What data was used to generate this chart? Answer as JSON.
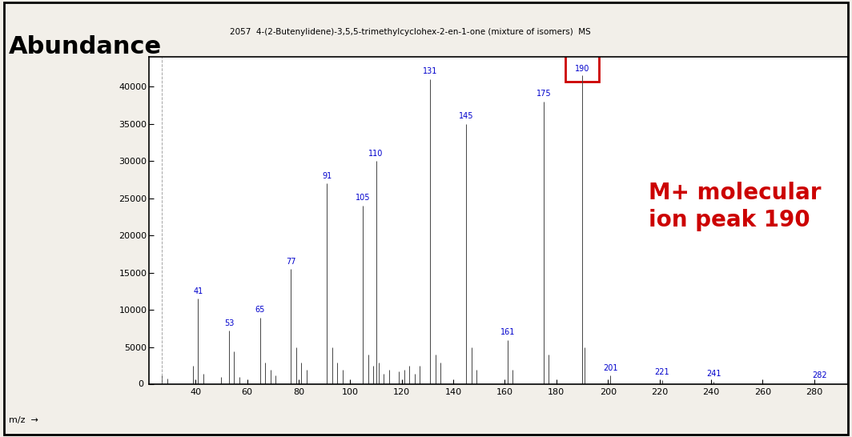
{
  "title": "2057  4-(2-Butenylidene)-3,5,5-trimethylcyclohex-2-en-1-one (mixture of isomers)  MS",
  "mz_label": "m/z  →",
  "ylabel_large": "Abundance",
  "background_color": "#f2efe9",
  "plot_bg": "#ffffff",
  "xlim": [
    22,
    293
  ],
  "ylim": [
    0,
    44000
  ],
  "yticks": [
    0,
    5000,
    10000,
    15000,
    20000,
    25000,
    30000,
    35000,
    40000
  ],
  "xticks": [
    40,
    60,
    80,
    100,
    120,
    140,
    160,
    180,
    200,
    220,
    240,
    260,
    280
  ],
  "annotation_text": "M+ molecular\nion peak 190",
  "annotation_color": "#cc0000",
  "peaks": [
    {
      "mz": 27,
      "intensity": 1200,
      "label": null
    },
    {
      "mz": 29,
      "intensity": 800,
      "label": null
    },
    {
      "mz": 39,
      "intensity": 2500,
      "label": null
    },
    {
      "mz": 41,
      "intensity": 11500,
      "label": "41"
    },
    {
      "mz": 43,
      "intensity": 1500,
      "label": null
    },
    {
      "mz": 50,
      "intensity": 1000,
      "label": null
    },
    {
      "mz": 53,
      "intensity": 7200,
      "label": "53"
    },
    {
      "mz": 55,
      "intensity": 4500,
      "label": null
    },
    {
      "mz": 57,
      "intensity": 1000,
      "label": null
    },
    {
      "mz": 65,
      "intensity": 9000,
      "label": "65"
    },
    {
      "mz": 67,
      "intensity": 3000,
      "label": null
    },
    {
      "mz": 69,
      "intensity": 2000,
      "label": null
    },
    {
      "mz": 71,
      "intensity": 1200,
      "label": null
    },
    {
      "mz": 77,
      "intensity": 15500,
      "label": "77"
    },
    {
      "mz": 79,
      "intensity": 5000,
      "label": null
    },
    {
      "mz": 81,
      "intensity": 3000,
      "label": null
    },
    {
      "mz": 83,
      "intensity": 2000,
      "label": null
    },
    {
      "mz": 91,
      "intensity": 27000,
      "label": "91"
    },
    {
      "mz": 93,
      "intensity": 5000,
      "label": null
    },
    {
      "mz": 95,
      "intensity": 3000,
      "label": null
    },
    {
      "mz": 97,
      "intensity": 2000,
      "label": null
    },
    {
      "mz": 105,
      "intensity": 24000,
      "label": "105"
    },
    {
      "mz": 107,
      "intensity": 4000,
      "label": null
    },
    {
      "mz": 109,
      "intensity": 2500,
      "label": null
    },
    {
      "mz": 110,
      "intensity": 30000,
      "label": "110"
    },
    {
      "mz": 111,
      "intensity": 3000,
      "label": null
    },
    {
      "mz": 113,
      "intensity": 1500,
      "label": null
    },
    {
      "mz": 115,
      "intensity": 2000,
      "label": null
    },
    {
      "mz": 119,
      "intensity": 1800,
      "label": null
    },
    {
      "mz": 121,
      "intensity": 2000,
      "label": null
    },
    {
      "mz": 123,
      "intensity": 2500,
      "label": null
    },
    {
      "mz": 125,
      "intensity": 1500,
      "label": null
    },
    {
      "mz": 127,
      "intensity": 2500,
      "label": null
    },
    {
      "mz": 131,
      "intensity": 41000,
      "label": "131"
    },
    {
      "mz": 133,
      "intensity": 4000,
      "label": null
    },
    {
      "mz": 135,
      "intensity": 3000,
      "label": null
    },
    {
      "mz": 145,
      "intensity": 35000,
      "label": "145"
    },
    {
      "mz": 147,
      "intensity": 5000,
      "label": null
    },
    {
      "mz": 149,
      "intensity": 2000,
      "label": null
    },
    {
      "mz": 161,
      "intensity": 6000,
      "label": "161"
    },
    {
      "mz": 163,
      "intensity": 2000,
      "label": null
    },
    {
      "mz": 175,
      "intensity": 38000,
      "label": "175"
    },
    {
      "mz": 177,
      "intensity": 4000,
      "label": null
    },
    {
      "mz": 190,
      "intensity": 41500,
      "label": "190"
    },
    {
      "mz": 191,
      "intensity": 5000,
      "label": null
    },
    {
      "mz": 201,
      "intensity": 1200,
      "label": "201"
    },
    {
      "mz": 221,
      "intensity": 600,
      "label": "221"
    },
    {
      "mz": 241,
      "intensity": 400,
      "label": "241"
    },
    {
      "mz": 282,
      "intensity": 200,
      "label": "282"
    }
  ],
  "label_color": "#0000cc",
  "bar_color": "#444444",
  "boxed_peak_mz": 190,
  "box_color": "#cc0000",
  "dashed_line_mz": 27,
  "abundance_fontsize": 22,
  "title_fontsize": 7.5,
  "annotation_fontsize": 20,
  "peak_label_fontsize": 7
}
